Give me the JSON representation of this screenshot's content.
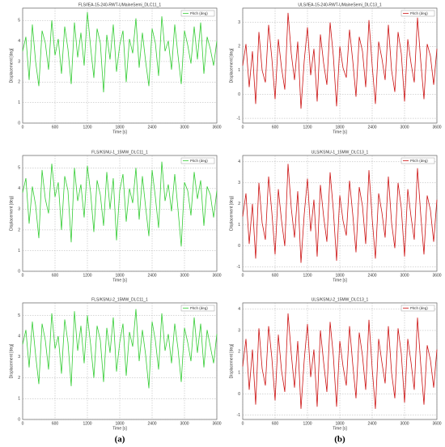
{
  "chart_data": [
    {
      "type": "line",
      "title": "FLS/IEA-15-240-RWT-UMaineSemi_DLC11_1",
      "x_label": "Time [s]",
      "y_label": "Displacement [deg]",
      "legend": "upper right",
      "grid": true,
      "x": [
        0,
        60,
        120,
        180,
        240,
        300,
        360,
        420,
        480,
        540,
        600,
        660,
        720,
        780,
        840,
        900,
        960,
        1020,
        1080,
        1140,
        1200,
        1260,
        1320,
        1380,
        1440,
        1500,
        1560,
        1620,
        1680,
        1740,
        1800,
        1860,
        1920,
        1980,
        2040,
        2100,
        2160,
        2220,
        2280,
        2340,
        2400,
        2460,
        2520,
        2580,
        2640,
        2700,
        2760,
        2820,
        2880,
        2940,
        3000,
        3060,
        3120,
        3180,
        3240,
        3300,
        3360,
        3420,
        3480,
        3540,
        3600
      ],
      "series": [
        {
          "name": "Pitch (deg)",
          "color": "#33cc33",
          "values": [
            3.5,
            4.2,
            2.1,
            4.8,
            3.0,
            1.8,
            4.5,
            3.9,
            2.6,
            5.0,
            3.3,
            4.1,
            2.4,
            4.7,
            3.6,
            1.9,
            4.9,
            3.2,
            4.4,
            2.8,
            5.4,
            3.7,
            2.2,
            4.6,
            3.9,
            1.5,
            4.3,
            3.1,
            4.8,
            2.5,
            3.8,
            4.5,
            2.0,
            4.1,
            3.4,
            5.1,
            2.7,
            4.4,
            3.0,
            1.8,
            4.6,
            3.9,
            2.3,
            5.2,
            3.5,
            4.0,
            2.6,
            4.8,
            3.3,
            1.9,
            4.5,
            3.8,
            2.9,
            4.7,
            3.1,
            4.9,
            2.4,
            4.2,
            3.6,
            2.8,
            4.0
          ]
        }
      ],
      "xlim": [
        0,
        3600
      ],
      "xticks": [
        0,
        600,
        1200,
        1800,
        2400,
        3000,
        3600
      ],
      "ylim": [
        0,
        5.6
      ],
      "yticks": [
        0,
        1,
        2,
        3,
        4,
        5
      ]
    },
    {
      "type": "line",
      "title": "FLS/KSNU-1_15MW_DLC11_1",
      "x_label": "Time [s]",
      "y_label": "Displacement [deg]",
      "legend": "upper right",
      "grid": true,
      "x": [
        0,
        60,
        120,
        180,
        240,
        300,
        360,
        420,
        480,
        540,
        600,
        660,
        720,
        780,
        840,
        900,
        960,
        1020,
        1080,
        1140,
        1200,
        1260,
        1320,
        1380,
        1440,
        1500,
        1560,
        1620,
        1680,
        1740,
        1800,
        1860,
        1920,
        1980,
        2040,
        2100,
        2160,
        2220,
        2280,
        2340,
        2400,
        2460,
        2520,
        2580,
        2640,
        2700,
        2760,
        2820,
        2880,
        2940,
        3000,
        3060,
        3120,
        3180,
        3240,
        3300,
        3360,
        3420,
        3480,
        3540,
        3600
      ],
      "series": [
        {
          "name": "Pitch (deg)",
          "color": "#33cc33",
          "values": [
            3.8,
            4.5,
            2.3,
            4.1,
            3.2,
            1.6,
            4.9,
            3.5,
            2.8,
            5.2,
            3.6,
            4.3,
            2.0,
            4.6,
            3.9,
            1.4,
            5.0,
            3.4,
            4.2,
            2.6,
            5.1,
            3.8,
            1.9,
            4.4,
            3.7,
            2.2,
            4.8,
            3.0,
            4.5,
            1.5,
            3.9,
            4.7,
            2.4,
            4.0,
            3.3,
            5.0,
            2.5,
            4.6,
            3.1,
            1.7,
            4.9,
            3.6,
            2.1,
            5.3,
            3.4,
            4.2,
            2.9,
            4.7,
            3.0,
            1.2,
            4.3,
            3.9,
            2.7,
            4.8,
            3.5,
            4.4,
            2.2,
            4.1,
            3.7,
            2.6,
            3.9
          ]
        }
      ],
      "xlim": [
        0,
        3600
      ],
      "xticks": [
        0,
        600,
        1200,
        1800,
        2400,
        3000,
        3600
      ],
      "ylim": [
        0,
        5.6
      ],
      "yticks": [
        0,
        1,
        2,
        3,
        4,
        5
      ]
    },
    {
      "type": "line",
      "title": "FLS/KSNU-2_15MW_DLC11_1",
      "x_label": "Time [s]",
      "y_label": "Displacement [deg]",
      "legend": "upper right",
      "grid": true,
      "x": [
        0,
        60,
        120,
        180,
        240,
        300,
        360,
        420,
        480,
        540,
        600,
        660,
        720,
        780,
        840,
        900,
        960,
        1020,
        1080,
        1140,
        1200,
        1260,
        1320,
        1380,
        1440,
        1500,
        1560,
        1620,
        1680,
        1740,
        1800,
        1860,
        1920,
        1980,
        2040,
        2100,
        2160,
        2220,
        2280,
        2340,
        2400,
        2460,
        2520,
        2580,
        2640,
        2700,
        2760,
        2820,
        2880,
        2940,
        3000,
        3060,
        3120,
        3180,
        3240,
        3300,
        3360,
        3420,
        3480,
        3540,
        3600
      ],
      "series": [
        {
          "name": "Pitch (deg)",
          "color": "#33cc33",
          "values": [
            3.6,
            4.3,
            2.5,
            4.7,
            3.1,
            1.7,
            4.6,
            3.8,
            2.4,
            5.1,
            3.4,
            4.0,
            2.2,
            4.8,
            3.7,
            1.6,
            5.2,
            3.3,
            4.5,
            2.7,
            5.0,
            3.6,
            2.0,
            4.5,
            3.8,
            1.8,
            4.4,
            3.2,
            4.9,
            2.3,
            3.7,
            4.6,
            2.1,
            4.2,
            3.5,
            5.3,
            2.8,
            4.3,
            3.1,
            1.5,
            4.7,
            3.8,
            2.4,
            5.1,
            3.3,
            4.1,
            2.7,
            4.6,
            3.4,
            1.8,
            4.4,
            3.7,
            2.8,
            4.9,
            3.2,
            4.6,
            2.5,
            4.3,
            3.5,
            2.7,
            4.1
          ]
        }
      ],
      "xlim": [
        0,
        3600
      ],
      "xticks": [
        0,
        600,
        1200,
        1800,
        2400,
        3000,
        3600
      ],
      "ylim": [
        0,
        5.6
      ],
      "yticks": [
        0,
        1,
        2,
        3,
        4,
        5
      ]
    },
    {
      "type": "line",
      "title": "ULS/IEA-15-240-RWT-UMaineSemi_DLC13_1",
      "x_label": "Time [s]",
      "y_label": "Displacement [deg]",
      "legend": "upper right",
      "grid": true,
      "x": [
        0,
        60,
        120,
        180,
        240,
        300,
        360,
        420,
        480,
        540,
        600,
        660,
        720,
        780,
        840,
        900,
        960,
        1020,
        1080,
        1140,
        1200,
        1260,
        1320,
        1380,
        1440,
        1500,
        1560,
        1620,
        1680,
        1740,
        1800,
        1860,
        1920,
        1980,
        2040,
        2100,
        2160,
        2220,
        2280,
        2340,
        2400,
        2460,
        2520,
        2580,
        2640,
        2700,
        2760,
        2820,
        2880,
        2940,
        3000,
        3060,
        3120,
        3180,
        3240,
        3300,
        3360,
        3420,
        3480,
        3540,
        3600
      ],
      "series": [
        {
          "name": "Pitch (deg)",
          "color": "#cc1111",
          "values": [
            1.2,
            2.1,
            0.3,
            1.8,
            -0.4,
            2.6,
            1.0,
            0.5,
            2.9,
            1.5,
            -0.2,
            2.3,
            1.1,
            0.2,
            3.4,
            1.7,
            0.6,
            2.2,
            -0.6,
            1.4,
            2.8,
            0.8,
            1.9,
            -0.3,
            2.5,
            1.3,
            0.4,
            3.0,
            1.6,
            -0.5,
            2.0,
            1.1,
            0.7,
            2.7,
            1.4,
            -0.1,
            2.4,
            1.8,
            0.3,
            3.1,
            1.2,
            -0.4,
            2.2,
            1.5,
            0.6,
            2.9,
            1.0,
            0.1,
            2.6,
            1.7,
            -0.3,
            2.3,
            1.3,
            0.5,
            3.2,
            1.4,
            -0.2,
            2.1,
            1.6,
            0.4,
            1.9
          ]
        }
      ],
      "xlim": [
        0,
        3600
      ],
      "xticks": [
        0,
        600,
        1200,
        1800,
        2400,
        3000,
        3600
      ],
      "ylim": [
        -1.2,
        3.6
      ],
      "yticks": [
        -1,
        0,
        1,
        2,
        3
      ]
    },
    {
      "type": "line",
      "title": "ULS/KSNU-1_15MW_DLC13_1",
      "x_label": "Time [s]",
      "y_label": "Displacement [deg]",
      "legend": "upper right",
      "grid": true,
      "x": [
        0,
        60,
        120,
        180,
        240,
        300,
        360,
        420,
        480,
        540,
        600,
        660,
        720,
        780,
        840,
        900,
        960,
        1020,
        1080,
        1140,
        1200,
        1260,
        1320,
        1380,
        1440,
        1500,
        1560,
        1620,
        1680,
        1740,
        1800,
        1860,
        1920,
        1980,
        2040,
        2100,
        2160,
        2220,
        2280,
        2340,
        2400,
        2460,
        2520,
        2580,
        2640,
        2700,
        2760,
        2820,
        2880,
        2940,
        3000,
        3060,
        3120,
        3180,
        3240,
        3300,
        3360,
        3420,
        3480,
        3540,
        3600
      ],
      "series": [
        {
          "name": "Pitch (deg)",
          "color": "#cc1111",
          "values": [
            1.4,
            2.5,
            0.1,
            2.0,
            -0.6,
            3.0,
            1.1,
            0.3,
            3.3,
            1.6,
            -0.4,
            2.7,
            1.2,
            0.0,
            3.9,
            1.8,
            0.4,
            2.6,
            -0.8,
            1.5,
            3.2,
            0.7,
            2.2,
            -0.5,
            2.9,
            1.4,
            0.2,
            3.5,
            1.7,
            -0.7,
            2.4,
            1.2,
            0.5,
            3.1,
            1.5,
            -0.3,
            2.8,
            1.9,
            0.1,
            3.6,
            1.3,
            -0.6,
            2.5,
            1.6,
            0.4,
            3.3,
            1.1,
            -0.1,
            3.0,
            1.8,
            -0.5,
            2.7,
            1.4,
            0.3,
            3.7,
            1.5,
            -0.4,
            2.4,
            1.7,
            0.2,
            2.2
          ]
        }
      ],
      "xlim": [
        0,
        3600
      ],
      "xticks": [
        0,
        600,
        1200,
        1800,
        2400,
        3000,
        3600
      ],
      "ylim": [
        -1.2,
        4.3
      ],
      "yticks": [
        -1,
        0,
        1,
        2,
        3,
        4
      ]
    },
    {
      "type": "line",
      "title": "ULS/KSNU-2_15MW_DLC13_1",
      "x_label": "Time [s]",
      "y_label": "Displacement [deg]",
      "legend": "upper right",
      "grid": true,
      "x": [
        0,
        60,
        120,
        180,
        240,
        300,
        360,
        420,
        480,
        540,
        600,
        660,
        720,
        780,
        840,
        900,
        960,
        1020,
        1080,
        1140,
        1200,
        1260,
        1320,
        1380,
        1440,
        1500,
        1560,
        1620,
        1680,
        1740,
        1800,
        1860,
        1920,
        1980,
        2040,
        2100,
        2160,
        2220,
        2280,
        2340,
        2400,
        2460,
        2520,
        2580,
        2640,
        2700,
        2760,
        2820,
        2880,
        2940,
        3000,
        3060,
        3120,
        3180,
        3240,
        3300,
        3360,
        3420,
        3480,
        3540,
        3600
      ],
      "series": [
        {
          "name": "Pitch (deg)",
          "color": "#cc1111",
          "values": [
            1.3,
            2.6,
            0.2,
            2.1,
            -0.5,
            3.1,
            1.2,
            0.4,
            3.2,
            1.7,
            -0.3,
            2.8,
            1.1,
            0.1,
            3.8,
            1.9,
            0.3,
            2.5,
            -0.7,
            1.6,
            3.3,
            0.8,
            2.1,
            -0.6,
            3.0,
            1.5,
            0.1,
            3.4,
            1.8,
            -0.6,
            2.5,
            1.3,
            0.4,
            3.2,
            1.4,
            -0.2,
            2.9,
            1.8,
            0.2,
            3.5,
            1.2,
            -0.7,
            2.6,
            1.5,
            0.5,
            3.2,
            1.0,
            -0.2,
            3.1,
            1.9,
            -0.4,
            2.6,
            1.5,
            0.2,
            3.6,
            1.4,
            -0.5,
            2.3,
            1.6,
            0.3,
            2.1
          ]
        }
      ],
      "xlim": [
        0,
        3600
      ],
      "xticks": [
        0,
        600,
        1200,
        1800,
        2400,
        3000,
        3600
      ],
      "ylim": [
        -1.2,
        4.3
      ],
      "yticks": [
        -1,
        0,
        1,
        2,
        3,
        4
      ]
    }
  ],
  "captions": [
    "(a)",
    "(b)"
  ]
}
